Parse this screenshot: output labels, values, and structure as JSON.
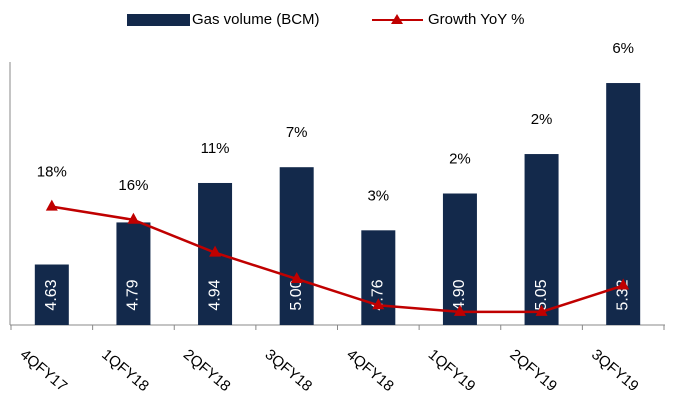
{
  "chart_data": {
    "type": "bar_line",
    "categories": [
      "4QFY17",
      "1QFY18",
      "2QFY18",
      "3QFY18",
      "4QFY18",
      "1QFY19",
      "2QFY19",
      "3QFY19"
    ],
    "series": [
      {
        "name": "Gas volume (BCM)",
        "color": "#13294b",
        "type": "bar",
        "values": [
          4.63,
          4.79,
          4.94,
          5.0,
          4.76,
          4.9,
          5.05,
          5.32
        ],
        "value_labels": [
          "4.63",
          "4.79",
          "4.94",
          "5.00",
          "4.76",
          "4.90",
          "5.05",
          "5.32"
        ]
      },
      {
        "name": "Growth YoY %",
        "color": "#c00000",
        "type": "line",
        "axis": "y2",
        "values": [
          18,
          16,
          11,
          7,
          3,
          2,
          2,
          6
        ],
        "value_labels": [
          "18%",
          "16%",
          "11%",
          "7%",
          "3%",
          "2%",
          "2%",
          "6%"
        ]
      }
    ],
    "ylim": [
      4.4,
      5.4
    ],
    "y2lim": [
      0,
      40
    ],
    "legend": "top"
  }
}
